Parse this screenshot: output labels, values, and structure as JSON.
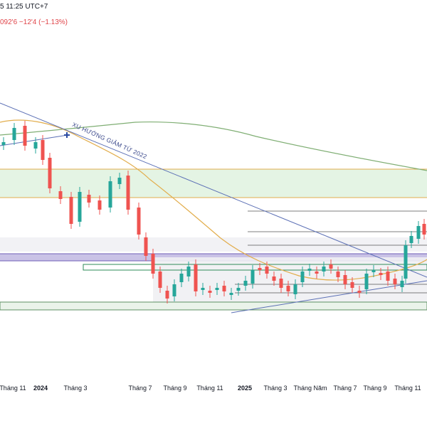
{
  "header": {
    "time": "5 11:25 UTC+7",
    "quote": "092'6  −12'4 (−1.13%)",
    "quote_color": "#e0454a"
  },
  "chart_data": {
    "type": "candlestick",
    "title": "",
    "xlabel": "",
    "ylabel": "",
    "x_ticks": [
      {
        "label": "Tháng 11",
        "bold": false
      },
      {
        "label": "2024",
        "bold": true
      },
      {
        "label": "Tháng 3",
        "bold": false
      },
      {
        "label": "Tháng 7",
        "bold": false
      },
      {
        "label": "Tháng 9",
        "bold": false
      },
      {
        "label": "Tháng 11",
        "bold": false
      },
      {
        "label": "2025",
        "bold": true
      },
      {
        "label": "Tháng 3",
        "bold": false
      },
      {
        "label": "Tháng Năm",
        "bold": false
      },
      {
        "label": "Tháng 7",
        "bold": false
      },
      {
        "label": "Tháng 9",
        "bold": false
      },
      {
        "label": "Tháng 11",
        "bold": false
      }
    ],
    "annotations": [
      {
        "name": "trendline-label",
        "text": "XU HƯỚNG GIẢM TỪ 2022"
      }
    ],
    "colors": {
      "up": "#26a69a",
      "down": "#ef5350",
      "ma_slow": "#7fae73",
      "ma_fast": "#e2ad4c",
      "trendline": "#5b6fb5",
      "zone_green": "#e4f4e4",
      "zone_gray": "#efeff3",
      "zone_purple": "#c9c2e6"
    },
    "grid": false,
    "legend": "none"
  }
}
